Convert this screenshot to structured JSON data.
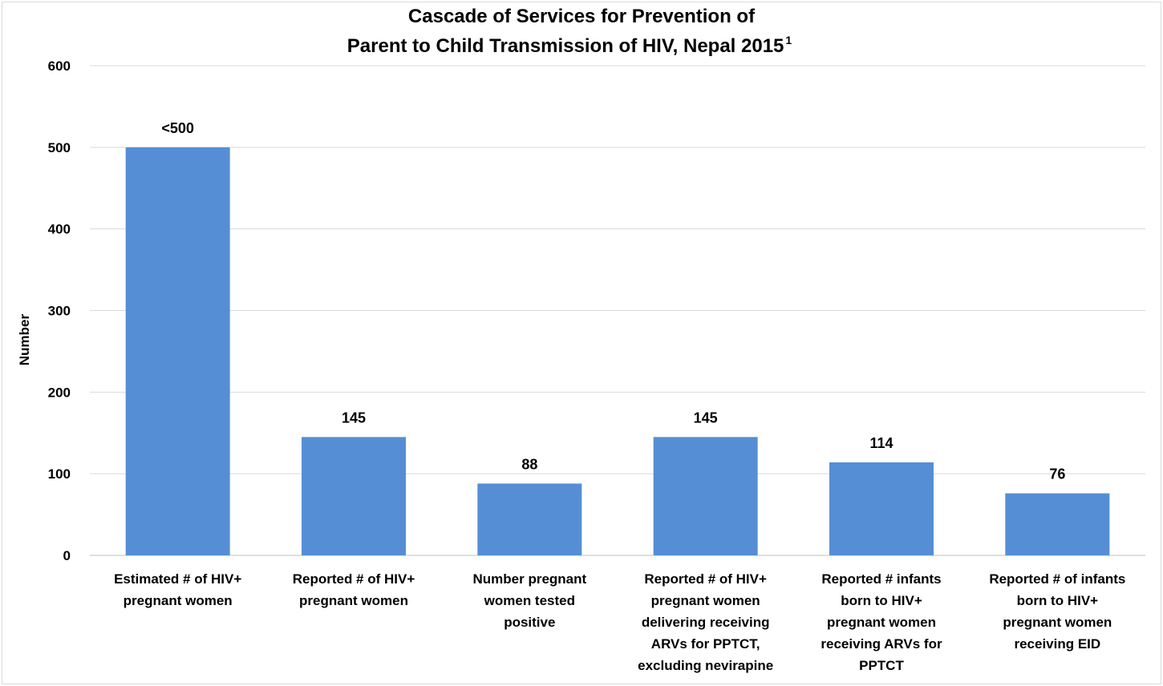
{
  "chart_data": {
    "type": "bar",
    "title_lines": [
      "Cascade of Services for Prevention of",
      "Parent to Child Transmission of HIV, Nepal 2015"
    ],
    "title_superscript": "1",
    "ylabel": "Number",
    "ylim": [
      0,
      600
    ],
    "yticks": [
      0,
      100,
      200,
      300,
      400,
      500,
      600
    ],
    "grid": true,
    "bar_color": "#558ed5",
    "categories": [
      [
        "Estimated # of HIV+",
        "pregnant women"
      ],
      [
        "Reported # of HIV+",
        "pregnant women"
      ],
      [
        "Number pregnant",
        "women tested",
        "positive"
      ],
      [
        "Reported # of HIV+",
        "pregnant women",
        "delivering receiving",
        "ARVs for PPTCT,",
        "excluding nevirapine"
      ],
      [
        "Reported # infants",
        "born to HIV+",
        "pregnant women",
        "receiving ARVs for",
        "PPTCT"
      ],
      [
        "Reported # of infants",
        "born to HIV+",
        "pregnant women",
        "receiving EID"
      ]
    ],
    "values": [
      500,
      145,
      88,
      145,
      114,
      76
    ],
    "data_labels": [
      "<500",
      "145",
      "88",
      "145",
      "114",
      "76"
    ]
  }
}
